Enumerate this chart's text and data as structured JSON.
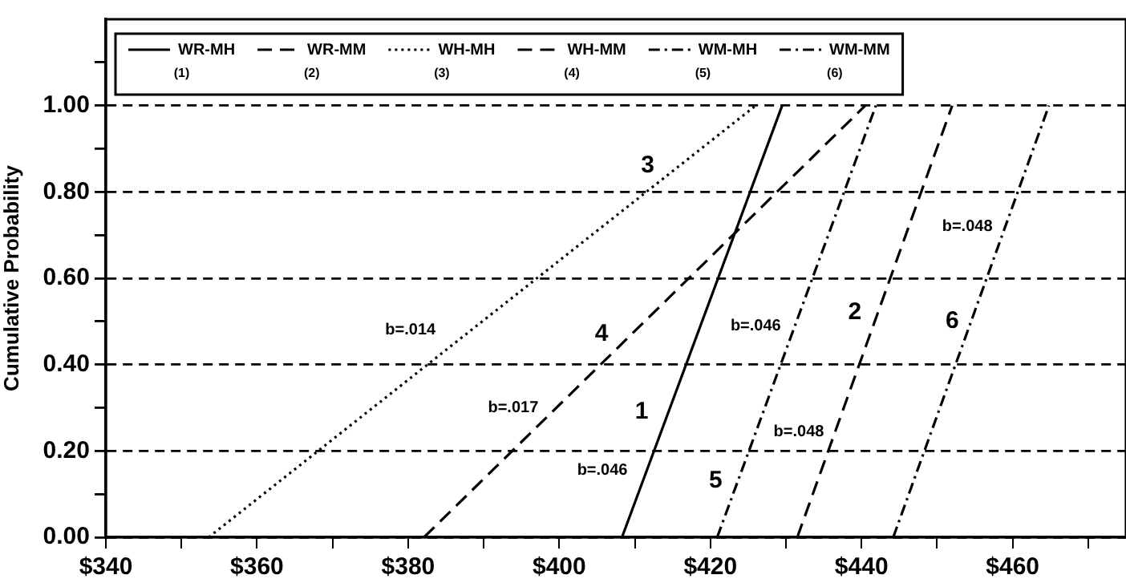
{
  "chart_data": {
    "type": "line",
    "ylabel": "Cumulative Probability",
    "legend": "top left",
    "grid": "y",
    "marker": "none",
    "xlim": [
      340,
      475
    ],
    "xticks": [
      {
        "value": 340,
        "label": "$340"
      },
      {
        "value": 350,
        "label": null
      },
      {
        "value": 360,
        "label": "$360"
      },
      {
        "value": 370,
        "label": null
      },
      {
        "value": 380,
        "label": "$380"
      },
      {
        "value": 390,
        "label": null
      },
      {
        "value": 400,
        "label": "$400"
      },
      {
        "value": 410,
        "label": null
      },
      {
        "value": 420,
        "label": "$420"
      },
      {
        "value": 430,
        "label": null
      },
      {
        "value": 440,
        "label": "$440"
      },
      {
        "value": 450,
        "label": null
      },
      {
        "value": 460,
        "label": "$460"
      },
      {
        "value": 470,
        "label": null
      }
    ],
    "ylim": [
      0,
      1.2
    ],
    "yticks": [
      {
        "value": 0,
        "label": "0.00"
      },
      {
        "value": 0.1,
        "label": null
      },
      {
        "value": 0.2,
        "label": "0.20"
      },
      {
        "value": 0.3,
        "label": null
      },
      {
        "value": 0.4,
        "label": "0.40"
      },
      {
        "value": 0.5,
        "label": null
      },
      {
        "value": 0.6,
        "label": "0.60"
      },
      {
        "value": 0.7,
        "label": null
      },
      {
        "value": 0.8,
        "label": "0.80"
      },
      {
        "value": 0.9,
        "label": null
      },
      {
        "value": 1,
        "label": "1.00"
      },
      {
        "value": 1.1,
        "label": null
      }
    ],
    "series": [
      {
        "name": "WR-MH",
        "color": "#000000",
        "line_style": "solid",
        "x": [
          408.3,
          429.5
        ],
        "values": [
          0,
          1
        ]
      },
      {
        "name": "WR-MM",
        "color": "#000000",
        "line_style": "dashed",
        "x": [
          431.5,
          452.0
        ],
        "values": [
          0,
          1
        ]
      },
      {
        "name": "WH-MH",
        "color": "#000000",
        "line_style": "dotted",
        "x": [
          353.6,
          426.0
        ],
        "values": [
          0,
          1
        ]
      },
      {
        "name": "WH-MM",
        "color": "#000000",
        "line_style": "dashed",
        "x": [
          382.1,
          440.5
        ],
        "values": [
          0,
          1
        ]
      },
      {
        "name": "WM-MH",
        "color": "#000000",
        "line_style": "dashdot",
        "x": [
          420.9,
          441.9
        ],
        "values": [
          0,
          1
        ]
      },
      {
        "name": "WM-MM",
        "color": "#000000",
        "line_style": "dashdot",
        "x": [
          444.2,
          464.8
        ],
        "values": [
          0,
          1
        ]
      }
    ],
    "annotations": [
      "(1)",
      "(2)",
      "(3)",
      "(4)",
      "(5)",
      "(6)",
      "3",
      "4",
      "1",
      "5",
      "2",
      "6",
      "b=.014",
      "b=.017",
      "b=.046",
      "b=.046",
      "b=.048",
      "b=.048"
    ]
  }
}
